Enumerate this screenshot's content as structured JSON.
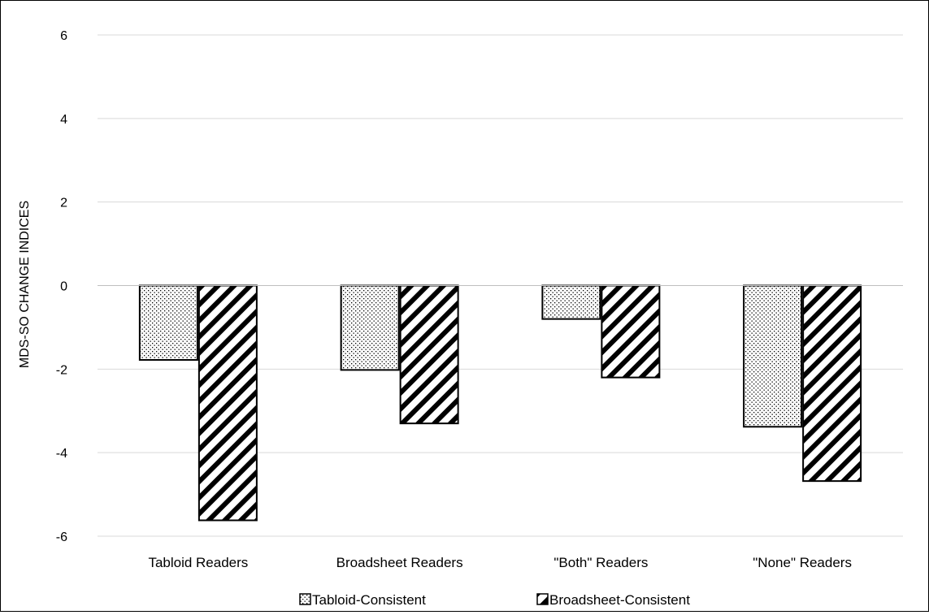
{
  "chart_data": {
    "type": "bar",
    "title": "",
    "xlabel": "",
    "ylabel": "MDS-SO CHANGE INDICES",
    "categories": [
      "Tabloid Readers",
      "Broadsheet Readers",
      "\"Both\" Readers",
      "\"None\" Readers"
    ],
    "series": [
      {
        "name": "Tabloid-Consistent",
        "pattern": "dots",
        "values": [
          -1.78,
          -2.02,
          -0.8,
          -3.38
        ]
      },
      {
        "name": "Broadsheet-Consistent",
        "pattern": "diagonal-stripes",
        "values": [
          -5.62,
          -3.3,
          -2.2,
          -4.68
        ]
      }
    ],
    "ylim": [
      -6,
      6
    ],
    "yticks": [
      "-6",
      "-4",
      "-2",
      "0",
      "2",
      "4",
      "6"
    ],
    "grid": true,
    "legend_position": "bottom",
    "colors": {
      "bar_stroke": "#000000",
      "gridline": "#d9d9d9",
      "text": "#000000"
    }
  }
}
